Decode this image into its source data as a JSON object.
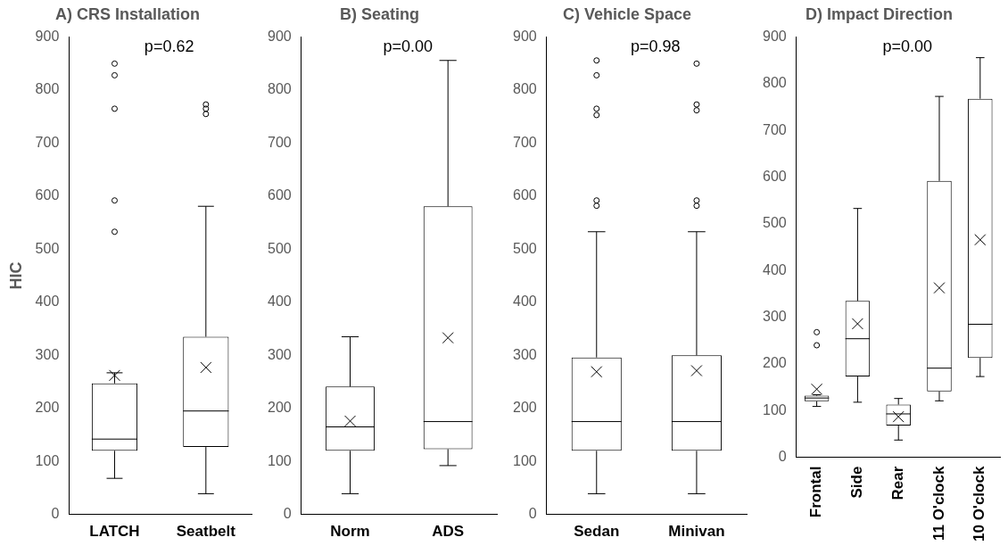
{
  "chart_data": [
    {
      "type": "box",
      "title": "A) CRS Installation",
      "ylabel": "HIC",
      "categories": [
        "LATCH",
        "Seatbelt"
      ],
      "ylim": [
        0,
        900
      ],
      "yticks": [
        0,
        100,
        200,
        300,
        400,
        500,
        600,
        700,
        800,
        900
      ],
      "grid": false,
      "annotations": [
        "p=0.62"
      ],
      "boxes": [
        {
          "low": 68,
          "q1": 120,
          "median": 142,
          "q3": 247,
          "high": 267,
          "mean": 262,
          "outliers": [
            533,
            592,
            765,
            828,
            850
          ]
        },
        {
          "low": 39,
          "q1": 127,
          "median": 195,
          "q3": 335,
          "high": 581,
          "mean": 277,
          "outliers": [
            755,
            765,
            773
          ]
        }
      ]
    },
    {
      "type": "box",
      "title": "B) Seating",
      "categories": [
        "Norm",
        "ADS"
      ],
      "ylim": [
        0,
        900
      ],
      "yticks": [
        0,
        100,
        200,
        300,
        400,
        500,
        600,
        700,
        800,
        900
      ],
      "grid": false,
      "annotations": [
        "p=0.00"
      ],
      "boxes": [
        {
          "low": 39,
          "q1": 120,
          "median": 165,
          "q3": 241,
          "high": 335,
          "mean": 176
        },
        {
          "low": 92,
          "q1": 123,
          "median": 175,
          "q3": 581,
          "high": 856,
          "mean": 333
        }
      ]
    },
    {
      "type": "box",
      "title": "C) Vehicle Space",
      "categories": [
        "Sedan",
        "Minivan"
      ],
      "ylim": [
        0,
        900
      ],
      "yticks": [
        0,
        100,
        200,
        300,
        400,
        500,
        600,
        700,
        800,
        900
      ],
      "grid": false,
      "annotations": [
        "p=0.98"
      ],
      "boxes": [
        {
          "low": 39,
          "q1": 120,
          "median": 175,
          "q3": 296,
          "high": 533,
          "mean": 269,
          "outliers": [
            582,
            592,
            753,
            765,
            828,
            856
          ]
        },
        {
          "low": 39,
          "q1": 120,
          "median": 175,
          "q3": 300,
          "high": 533,
          "mean": 271,
          "outliers": [
            582,
            592,
            762,
            773,
            850
          ]
        }
      ]
    },
    {
      "type": "box",
      "title": "D) Impact Direction",
      "categories": [
        "Frontal",
        "Side",
        "Rear",
        "11 O'clock",
        "10 O'clock"
      ],
      "ylim": [
        0,
        900
      ],
      "yticks": [
        0,
        100,
        200,
        300,
        400,
        500,
        600,
        700,
        800,
        900
      ],
      "grid": false,
      "annotations": [
        "p=0.00"
      ],
      "boxes": [
        {
          "low": 109,
          "q1": 120,
          "median": 127,
          "q3": 132,
          "high": 134,
          "mean": 146,
          "outliers": [
            240,
            268
          ]
        },
        {
          "low": 118,
          "q1": 173,
          "median": 254,
          "q3": 335,
          "high": 533,
          "mean": 286
        },
        {
          "low": 37,
          "q1": 68,
          "median": 93,
          "q3": 113,
          "high": 126,
          "mean": 87
        },
        {
          "low": 121,
          "q1": 141,
          "median": 191,
          "q3": 592,
          "high": 773,
          "mean": 363
        },
        {
          "low": 173,
          "q1": 213,
          "median": 285,
          "q3": 768,
          "high": 856,
          "mean": 466
        }
      ]
    }
  ]
}
